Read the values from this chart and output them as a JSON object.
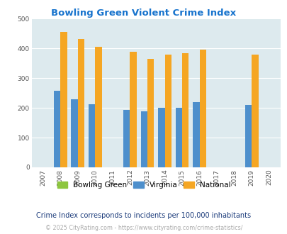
{
  "title": "Bowling Green Violent Crime Index",
  "years": [
    2007,
    2008,
    2009,
    2010,
    2011,
    2012,
    2013,
    2014,
    2015,
    2016,
    2017,
    2018,
    2019,
    2020
  ],
  "bowling_green": [
    0,
    0,
    0,
    0,
    0,
    0,
    0,
    0,
    0,
    0,
    0,
    0,
    0,
    0
  ],
  "virginia": [
    0,
    258,
    228,
    213,
    0,
    193,
    189,
    200,
    200,
    220,
    0,
    0,
    210,
    0
  ],
  "national": [
    0,
    455,
    432,
    405,
    0,
    388,
    366,
    379,
    384,
    397,
    0,
    0,
    379,
    0
  ],
  "bg_color": "#ddeaee",
  "bowling_green_color": "#8dc63f",
  "virginia_color": "#4d8fcc",
  "national_color": "#f5a623",
  "title_color": "#1874CD",
  "ylim": [
    0,
    500
  ],
  "yticks": [
    0,
    100,
    200,
    300,
    400,
    500
  ],
  "subtitle": "Crime Index corresponds to incidents per 100,000 inhabitants",
  "footer": "© 2025 CityRating.com - https://www.cityrating.com/crime-statistics/",
  "bar_width": 0.38
}
